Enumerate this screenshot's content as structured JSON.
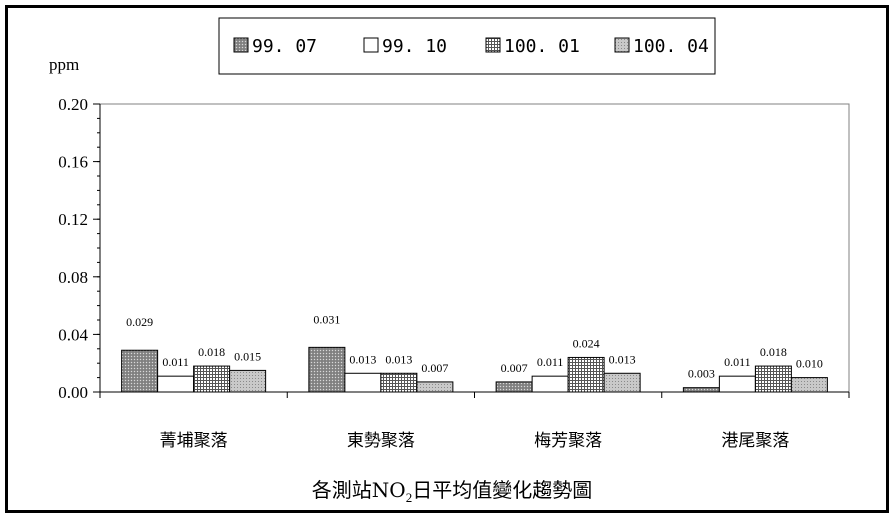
{
  "chart_data": {
    "type": "bar",
    "title_parts": {
      "before": "各測站NO",
      "sub": "2",
      "after": "日平均值變化趨勢圖"
    },
    "ylabel": "ppm",
    "xlabel": "",
    "categories": [
      "菁埔聚落",
      "東勢聚落",
      "梅芳聚落",
      "港尾聚落"
    ],
    "series": [
      {
        "name": "99.07",
        "values": [
          0.029,
          0.031,
          0.007,
          0.003
        ],
        "value_labels": [
          "0.029",
          "0.031",
          "0.007",
          "0.003"
        ],
        "pattern": "dark-dots",
        "color": "#9a9a9a"
      },
      {
        "name": "99.10",
        "values": [
          0.011,
          0.013,
          0.011,
          0.011
        ],
        "value_labels": [
          "0.011",
          "0.013",
          "0.011",
          "0.011"
        ],
        "pattern": "white",
        "color": "#ffffff"
      },
      {
        "name": "100.01",
        "values": [
          0.018,
          0.013,
          0.024,
          0.018
        ],
        "value_labels": [
          "0.018",
          "0.013",
          "0.024",
          "0.018"
        ],
        "pattern": "grid",
        "color": "#bdbdbd"
      },
      {
        "name": "100.04",
        "values": [
          0.015,
          0.007,
          0.013,
          0.01
        ],
        "value_labels": [
          "0.015",
          "0.007",
          "0.013",
          "0.010"
        ],
        "pattern": "light-dots",
        "color": "#c2c2c2"
      }
    ],
    "ylim": [
      0,
      0.2
    ],
    "yticks": [
      0.0,
      0.04,
      0.08,
      0.12,
      0.16,
      0.2
    ],
    "ytick_labels": [
      "0.00",
      "0.04",
      "0.08",
      "0.12",
      "0.16",
      "0.20"
    ],
    "grid": false,
    "legend_position": "top-center"
  }
}
